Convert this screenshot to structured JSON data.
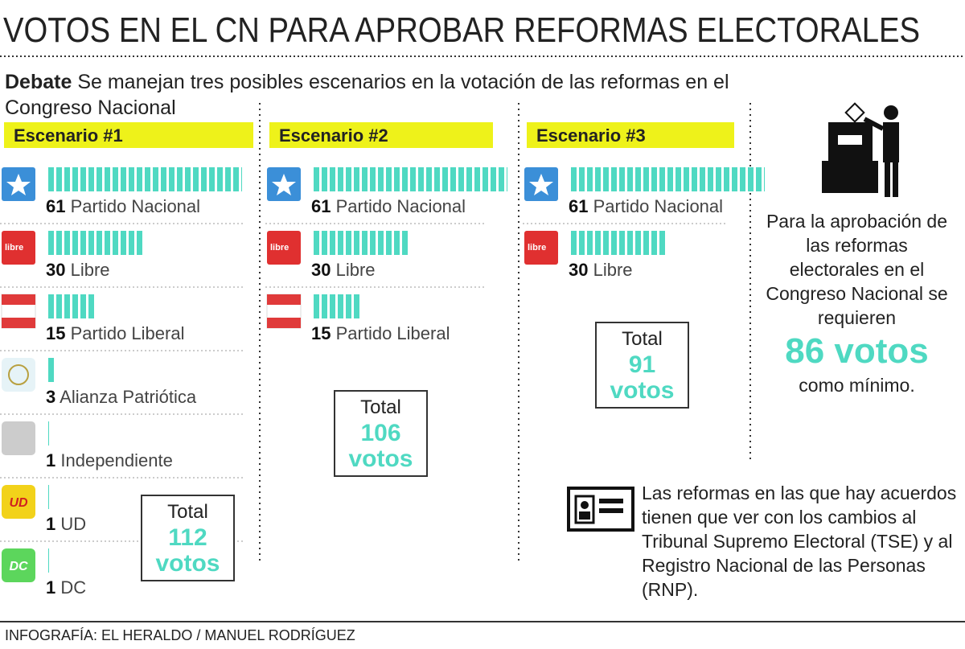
{
  "title": "VOTOS EN EL CN PARA APROBAR REFORMAS ELECTORALES",
  "intro": {
    "label": "Debate",
    "text": "Se manejan tres posibles escenarios en la votación de las reformas en el Congreso Nacional"
  },
  "scenarios": [
    {
      "title": "Escenario #1",
      "parties": [
        {
          "votes": 61,
          "name": "Partido Nacional"
        },
        {
          "votes": 30,
          "name": "Libre",
          "logo_text": "libre"
        },
        {
          "votes": 15,
          "name": "Partido Liberal"
        },
        {
          "votes": 3,
          "name": "Alianza Patriótica"
        },
        {
          "votes": 1,
          "name": "Independiente"
        },
        {
          "votes": 1,
          "name": "UD",
          "logo_text": "UD"
        },
        {
          "votes": 1,
          "name": "DC",
          "logo_text": "DC"
        }
      ],
      "total": {
        "label": "Total",
        "value": 112,
        "unit": "votos"
      }
    },
    {
      "title": "Escenario #2",
      "parties": [
        {
          "votes": 61,
          "name": "Partido Nacional"
        },
        {
          "votes": 30,
          "name": "Libre",
          "logo_text": "libre"
        },
        {
          "votes": 15,
          "name": "Partido Liberal"
        }
      ],
      "total": {
        "label": "Total",
        "value": 106,
        "unit": "votos"
      }
    },
    {
      "title": "Escenario #3",
      "parties": [
        {
          "votes": 61,
          "name": "Partido Nacional"
        },
        {
          "votes": 30,
          "name": "Libre",
          "logo_text": "libre"
        }
      ],
      "total": {
        "label": "Total",
        "value": 91,
        "unit": "votos"
      }
    }
  ],
  "requirement": {
    "text": "Para la aprobación de las reformas electorales en el Congreso Nacional se requieren",
    "highlight": "86 votos",
    "suffix": "como mínimo."
  },
  "note": "Las reformas en las que hay acuerdos tienen que ver con los cambios al Tribunal Supremo Electoral (TSE) y al Registro Nacional de las Personas (RNP).",
  "credit": "INFOGRAFÍA: EL HERALDO / MANUEL RODRÍGUEZ"
}
